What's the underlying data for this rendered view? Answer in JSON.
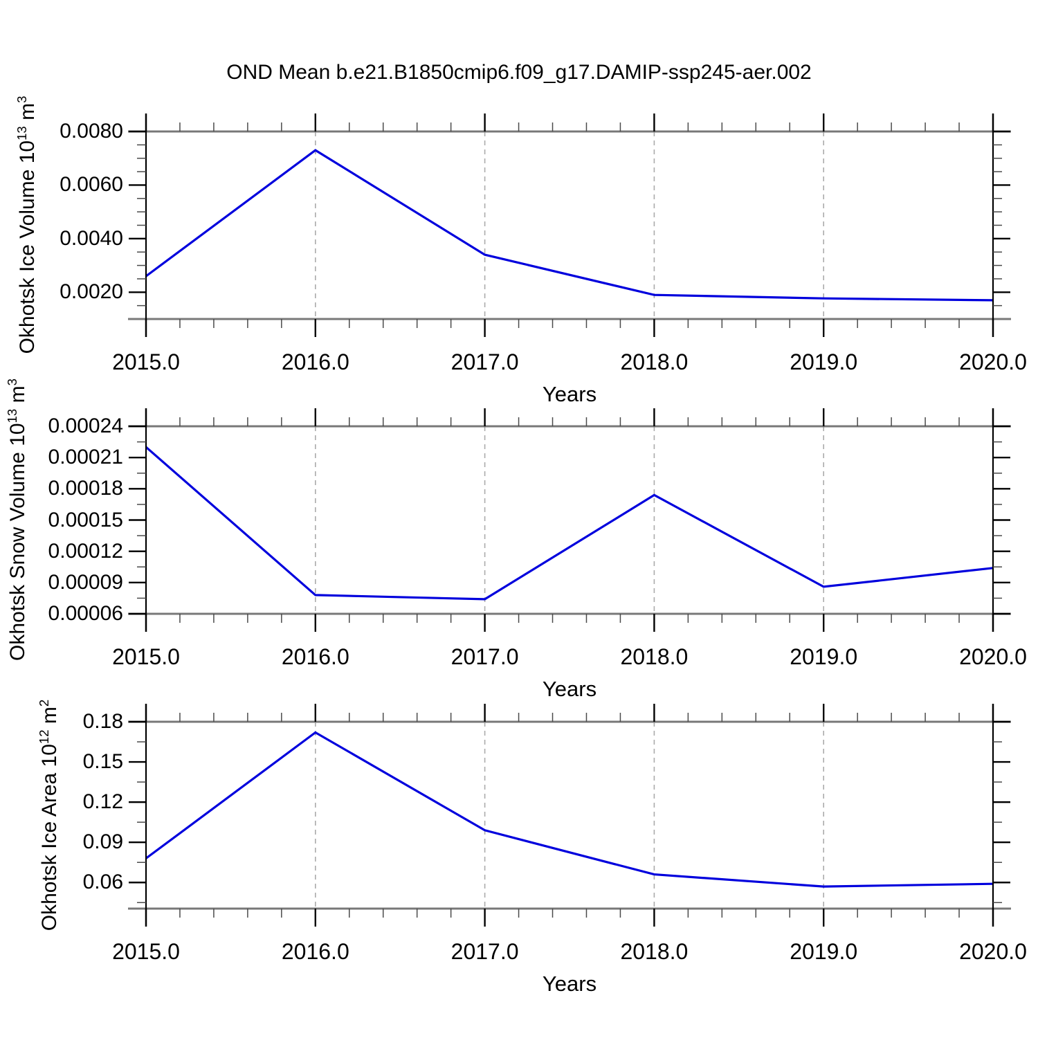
{
  "title": "OND Mean b.e21.B1850cmip6.f09_g17.DAMIP-ssp245-aer.002",
  "colors": {
    "line": "#0000dd",
    "panel_border": "#787878",
    "gridline": "#ababab",
    "tick_major": "#000000",
    "tick_minor": "#4a4a4a",
    "text": "#000000"
  },
  "chart_data": [
    {
      "type": "line",
      "name": "okhotsk-ice-volume",
      "x": [
        2015,
        2016,
        2017,
        2018,
        2019,
        2020
      ],
      "y": [
        0.0026,
        0.0073,
        0.0034,
        0.0019,
        0.00177,
        0.0017
      ],
      "xlabel": "Years",
      "ylabel": {
        "prefix": "Okhotsk Ice Volume 10",
        "exp": "13",
        "unit": " m",
        "unit_exp": "3"
      },
      "xlim": [
        2015.0,
        2020.0
      ],
      "ylim": [
        0.001,
        0.008
      ],
      "x_ticks": {
        "labels": [
          "2015.0",
          "2016.0",
          "2017.0",
          "2018.0",
          "2019.0",
          "2020.0"
        ],
        "values": [
          2015,
          2016,
          2017,
          2018,
          2019,
          2020
        ],
        "minor_step": 0.2
      },
      "y_ticks": {
        "labels": [
          "0.0020",
          "0.0040",
          "0.0060",
          "0.0080"
        ],
        "values": [
          0.002,
          0.004,
          0.006,
          0.008
        ],
        "minor_step": 0.0005
      },
      "gridlines_x": [
        2016,
        2017,
        2018,
        2019
      ],
      "legend": "none",
      "grid": "vertical-dashed"
    },
    {
      "type": "line",
      "name": "okhotsk-snow-volume",
      "x": [
        2015,
        2016,
        2017,
        2018,
        2019,
        2020
      ],
      "y": [
        0.00022,
        7.8e-05,
        7.4e-05,
        0.000174,
        8.6e-05,
        0.000104
      ],
      "xlabel": "Years",
      "ylabel": {
        "prefix": "Okhotsk Snow Volume 10",
        "exp": "13",
        "unit": " m",
        "unit_exp": "3"
      },
      "xlim": [
        2015.0,
        2020.0
      ],
      "ylim": [
        6e-05,
        0.00024
      ],
      "x_ticks": {
        "labels": [
          "2015.0",
          "2016.0",
          "2017.0",
          "2018.0",
          "2019.0",
          "2020.0"
        ],
        "values": [
          2015,
          2016,
          2017,
          2018,
          2019,
          2020
        ],
        "minor_step": 0.2
      },
      "y_ticks": {
        "labels": [
          "0.00006",
          "0.00009",
          "0.00012",
          "0.00015",
          "0.00018",
          "0.00021",
          "0.00024"
        ],
        "values": [
          6e-05,
          9e-05,
          0.00012,
          0.00015,
          0.00018,
          0.00021,
          0.00024
        ],
        "minor_step": 1.5e-05
      },
      "gridlines_x": [
        2016,
        2017,
        2018,
        2019
      ],
      "legend": "none",
      "grid": "vertical-dashed"
    },
    {
      "type": "line",
      "name": "okhotsk-ice-area",
      "x": [
        2015,
        2016,
        2017,
        2018,
        2019,
        2020
      ],
      "y": [
        0.078,
        0.172,
        0.099,
        0.066,
        0.057,
        0.059
      ],
      "xlabel": "Years",
      "ylabel": {
        "prefix": "Okhotsk Ice Area 10",
        "exp": "12",
        "unit": " m",
        "unit_exp": "2"
      },
      "xlim": [
        2015.0,
        2020.0
      ],
      "ylim": [
        0.0405,
        0.18
      ],
      "x_ticks": {
        "labels": [
          "2015.0",
          "2016.0",
          "2017.0",
          "2018.0",
          "2019.0",
          "2020.0"
        ],
        "values": [
          2015,
          2016,
          2017,
          2018,
          2019,
          2020
        ],
        "minor_step": 0.2
      },
      "y_ticks": {
        "labels": [
          "0.06",
          "0.09",
          "0.12",
          "0.15",
          "0.18"
        ],
        "values": [
          0.06,
          0.09,
          0.12,
          0.15,
          0.18
        ],
        "minor_step": 0.015
      },
      "gridlines_x": [
        2016,
        2017,
        2018,
        2019
      ],
      "legend": "none",
      "grid": "vertical-dashed"
    }
  ]
}
